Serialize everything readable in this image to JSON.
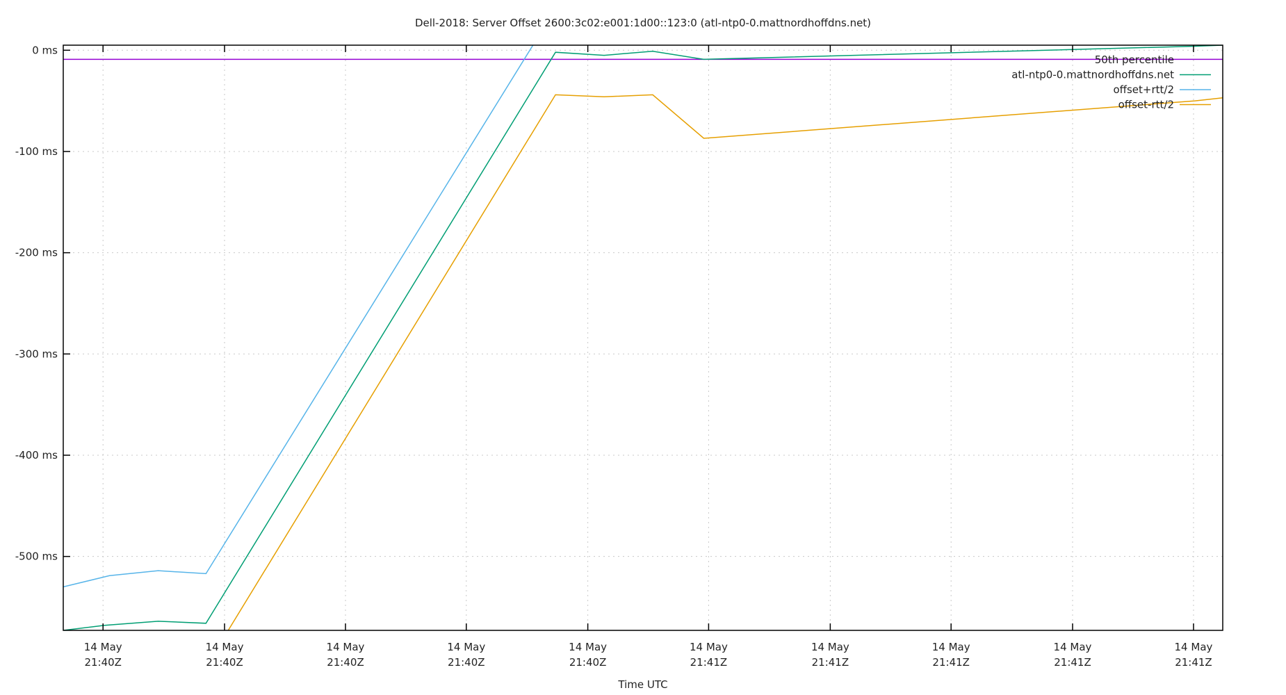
{
  "chart_data": {
    "type": "line",
    "title": "Dell-2018: Server Offset 2600:3c02:e001:1d00::123:0 (atl-ntp0-0.mattnordhoffdns.net)",
    "xlabel": "Time UTC",
    "ylabel": "",
    "ylim": [
      -573,
      5
    ],
    "grid": true,
    "legend_position": "top-right-inside",
    "y_ticks": [
      {
        "value": 0,
        "label": "0 ms"
      },
      {
        "value": -100,
        "label": "-100 ms"
      },
      {
        "value": -200,
        "label": "-200 ms"
      },
      {
        "value": -300,
        "label": "-300 ms"
      },
      {
        "value": -400,
        "label": "-400 ms"
      },
      {
        "value": -500,
        "label": "-500 ms"
      }
    ],
    "x_ticks": [
      {
        "pos": 0.0343,
        "line1": "14 May",
        "line2": "21:40Z"
      },
      {
        "pos": 0.1391,
        "line1": "14 May",
        "line2": "21:40Z"
      },
      {
        "pos": 0.2434,
        "line1": "14 May",
        "line2": "21:40Z"
      },
      {
        "pos": 0.3476,
        "line1": "14 May",
        "line2": "21:40Z"
      },
      {
        "pos": 0.4524,
        "line1": "14 May",
        "line2": "21:40Z"
      },
      {
        "pos": 0.5566,
        "line1": "14 May",
        "line2": "21:41Z"
      },
      {
        "pos": 0.6615,
        "line1": "14 May",
        "line2": "21:41Z"
      },
      {
        "pos": 0.7657,
        "line1": "14 May",
        "line2": "21:41Z"
      },
      {
        "pos": 0.8705,
        "line1": "14 May",
        "line2": "21:41Z"
      },
      {
        "pos": 0.9748,
        "line1": "14 May",
        "line2": "21:41Z"
      }
    ],
    "series": [
      {
        "name": "50th percentile",
        "color": "#9400d3",
        "type": "hline",
        "value": -9
      },
      {
        "name": "atl-ntp0-0.mattnordhoffdns.net",
        "color": "#009e73",
        "points": [
          [
            0.0,
            -573
          ],
          [
            0.0357,
            -568
          ],
          [
            0.0819,
            -564
          ],
          [
            0.1231,
            -566
          ],
          [
            0.4245,
            -2
          ],
          [
            0.4664,
            -5
          ],
          [
            0.5084,
            -1
          ],
          [
            0.5524,
            -9
          ],
          [
            0.9762,
            4
          ],
          [
            1.0,
            5
          ]
        ]
      },
      {
        "name": "offset+rtt/2",
        "color": "#56b4e9",
        "points": [
          [
            0.0,
            -530
          ],
          [
            0.0399,
            -519
          ],
          [
            0.0819,
            -514
          ],
          [
            0.1231,
            -517
          ],
          [
            0.4245,
            41
          ],
          [
            0.4664,
            38
          ],
          [
            0.5084,
            42
          ],
          [
            0.5524,
            34
          ],
          [
            0.9762,
            47
          ],
          [
            1.0,
            48
          ]
        ]
      },
      {
        "name": "offset-rtt/2",
        "color": "#e69f00",
        "points": [
          [
            0.0,
            -616
          ],
          [
            0.0357,
            -611
          ],
          [
            0.0819,
            -607
          ],
          [
            0.1231,
            -609
          ],
          [
            0.4245,
            -44
          ],
          [
            0.4664,
            -46
          ],
          [
            0.5084,
            -44
          ],
          [
            0.5524,
            -87
          ],
          [
            0.9762,
            -50
          ],
          [
            1.0,
            -47
          ]
        ]
      }
    ]
  },
  "legend": {
    "items": [
      {
        "label": "50th percentile",
        "color": "#9400d3",
        "swatch": false
      },
      {
        "label": "atl-ntp0-0.mattnordhoffdns.net",
        "color": "#009e73",
        "swatch": true
      },
      {
        "label": "offset+rtt/2",
        "color": "#56b4e9",
        "swatch": true
      },
      {
        "label": "offset-rtt/2",
        "color": "#e69f00",
        "swatch": true
      }
    ]
  }
}
